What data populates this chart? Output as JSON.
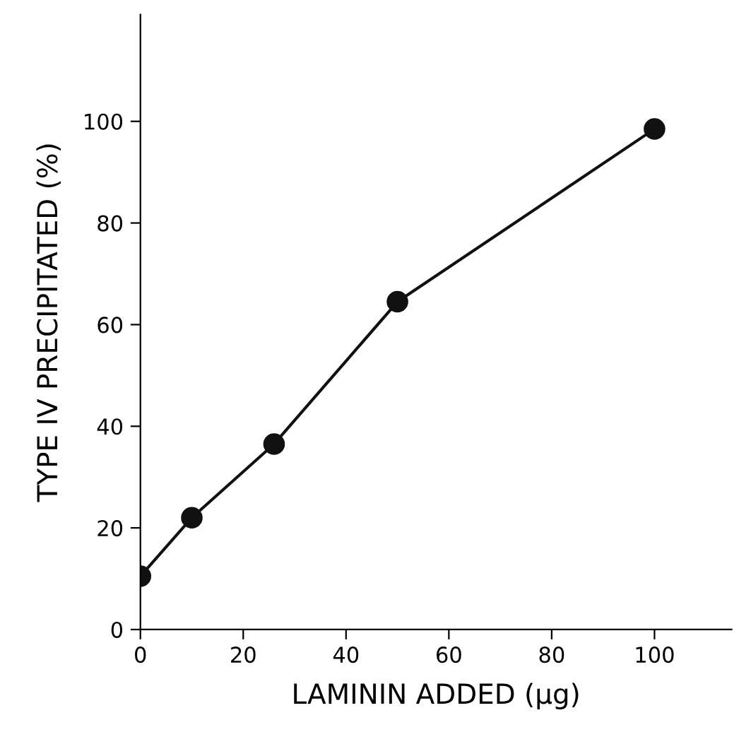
{
  "chart_data": {
    "type": "line",
    "xlabel": "LAMININ ADDED (μg)",
    "ylabel": "TYPE IV PRECIPITATED (%)",
    "x": [
      0,
      10,
      26,
      50,
      100
    ],
    "series": [
      {
        "color": "#111111",
        "values": [
          10.5,
          22,
          36.5,
          64.5,
          98.5
        ]
      }
    ],
    "xlim": [
      0,
      115
    ],
    "ylim": [
      0,
      121
    ],
    "xticks": [
      0,
      20,
      40,
      60,
      80,
      100
    ],
    "yticks": [
      0,
      20,
      40,
      60,
      80,
      100
    ],
    "marker": "circle",
    "line_style": "solid",
    "grid": false,
    "legend": false
  }
}
